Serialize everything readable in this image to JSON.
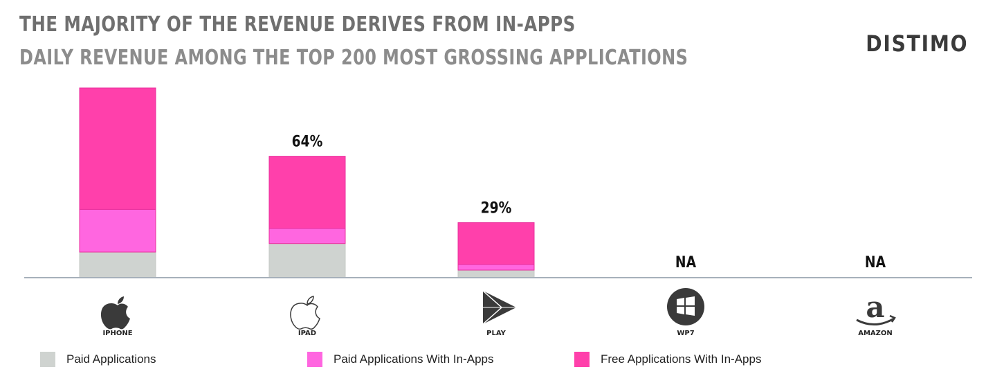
{
  "header": {
    "title": "THE MAJORITY OF THE REVENUE DERIVES FROM IN-APPS",
    "subtitle": "DAILY  REVENUE AMONG THE TOP 200 MOST GROSSING APPLICATIONS",
    "brand": "DISTIMO"
  },
  "colors": {
    "paid": "#cfd3d0",
    "paid_in_app": "#ff66e0",
    "free_in_app": "#ff40ab",
    "axis": "#a6b0ba",
    "label": "#111111"
  },
  "chart_data": {
    "type": "bar",
    "stacked": true,
    "categories": [
      "IPHONE",
      "IPAD",
      "PLAY",
      "WP7",
      "AMAZON"
    ],
    "icons": [
      "apple-filled-icon",
      "apple-outline-icon",
      "play-triangle-icon",
      "windows-icon",
      "amazon-icon"
    ],
    "series": [
      {
        "name": "Paid Applications",
        "color": "#cfd3d0",
        "values": [
          13.5,
          18,
          4,
          0,
          0
        ]
      },
      {
        "name": "Paid Applications With In-Apps",
        "color": "#ff66e0",
        "values": [
          22.5,
          8,
          3,
          0,
          0
        ]
      },
      {
        "name": "Free Applications With In-Apps",
        "color": "#ff40ab",
        "values": [
          64,
          38,
          22,
          0,
          0
        ]
      }
    ],
    "bar_labels": [
      "",
      "64%",
      "29%",
      "NA",
      "NA"
    ],
    "ylim": [
      0,
      100
    ],
    "grid": false,
    "legend_position": "bottom"
  }
}
